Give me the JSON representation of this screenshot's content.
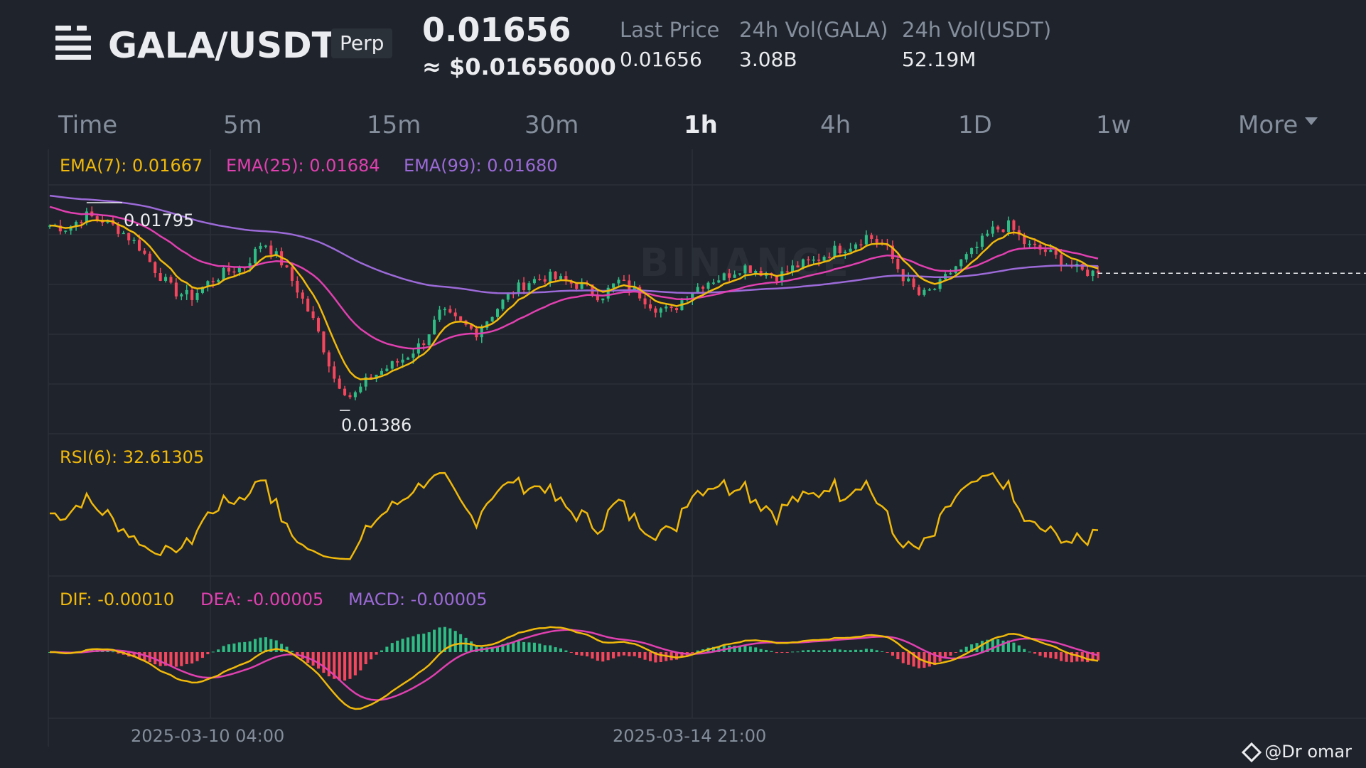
{
  "header": {
    "symbol": "GALA/USDT",
    "contract_type": "Perp",
    "price": "0.01656",
    "price_usd": "≈ $0.01656000",
    "stats": [
      {
        "label": "Last Price",
        "value": "0.01656"
      },
      {
        "label": "24h Vol(GALA)",
        "value": "3.08B"
      },
      {
        "label": "24h Vol(USDT)",
        "value": "52.19M"
      }
    ]
  },
  "tabs": [
    {
      "label": "Time",
      "active": false
    },
    {
      "label": "5m",
      "active": false
    },
    {
      "label": "15m",
      "active": false
    },
    {
      "label": "30m",
      "active": false
    },
    {
      "label": "1h",
      "active": true
    },
    {
      "label": "4h",
      "active": false
    },
    {
      "label": "1D",
      "active": false
    },
    {
      "label": "1w",
      "active": false
    },
    {
      "label": "More",
      "active": false
    }
  ],
  "indicators": {
    "ema7": "EMA(7): 0.01667",
    "ema25": "EMA(25): 0.01684",
    "ema99": "EMA(99): 0.01680",
    "rsi": "RSI(6): 32.61305",
    "dif": "DIF: -0.00010",
    "dea": "DEA: -0.00005",
    "macd": "MACD: -0.00005"
  },
  "price_markers": {
    "high": "0.01795",
    "low": "0.01386"
  },
  "time_axis": [
    "2025-03-10 04:00",
    "2025-03-14 21:00"
  ],
  "watermark": "BINANCE",
  "attribution": "@Dr omar",
  "colors": {
    "up": "#2ebd85",
    "down": "#f6465d",
    "ema7": "#f0b90b",
    "ema25": "#e040b0",
    "ema99": "#9c6ad8",
    "rsi": "#f0b90b",
    "grid": "#2b3139",
    "axis_text": "#848e9c"
  },
  "chart_data": {
    "type": "candlestick",
    "interval": "1h",
    "price_range": [
      0.0134,
      0.0183
    ],
    "last_price": 0.01656,
    "high": 0.01795,
    "low": 0.01386,
    "ema_last": {
      "ema7": 0.01667,
      "ema25": 0.01684,
      "ema99": 0.0168
    },
    "rsi6_last": 32.61305,
    "macd_last": {
      "dif": -0.0001,
      "dea": -5e-05,
      "macd": -5e-05
    },
    "close_trend": [
      0.0175,
      0.01745,
      0.0177,
      0.0176,
      0.0174,
      0.0171,
      0.0166,
      0.0162,
      0.0161,
      0.0164,
      0.0166,
      0.0167,
      0.0172,
      0.0168,
      0.0162,
      0.0155,
      0.0145,
      0.0141,
      0.0145,
      0.0147,
      0.0149,
      0.0152,
      0.0158,
      0.0156,
      0.0154,
      0.0158,
      0.0162,
      0.0164,
      0.0165,
      0.0164,
      0.0163,
      0.0161,
      0.0164,
      0.0162,
      0.0159,
      0.0158,
      0.0162,
      0.0164,
      0.0165,
      0.0167,
      0.0166,
      0.0165,
      0.0167,
      0.0168,
      0.017,
      0.0171,
      0.0173,
      0.0171,
      0.0165,
      0.0161,
      0.0163,
      0.0167,
      0.017,
      0.0174,
      0.0175,
      0.0171,
      0.017,
      0.0168,
      0.0166,
      0.01656
    ]
  }
}
